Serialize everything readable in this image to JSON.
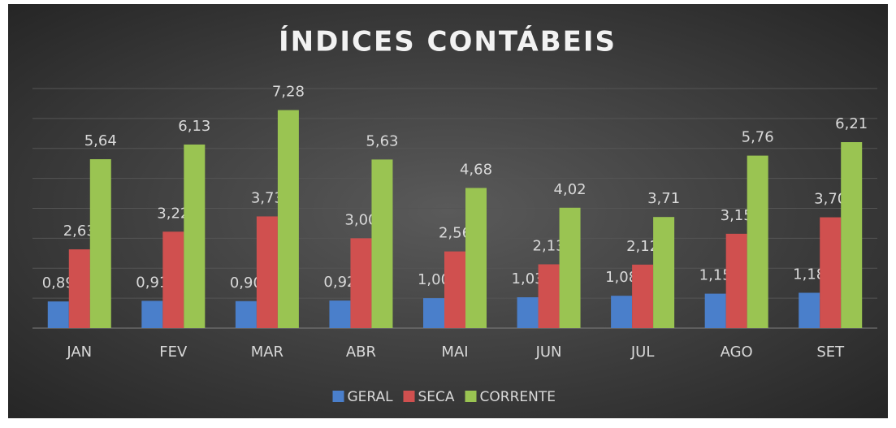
{
  "chart_data": {
    "type": "bar",
    "title": "ÍNDICES CONTÁBEIS",
    "categories": [
      "JAN",
      "FEV",
      "MAR",
      "ABR",
      "MAI",
      "JUN",
      "JUL",
      "AGO",
      "SET"
    ],
    "series": [
      {
        "name": "GERAL",
        "color": "#4a7fcb",
        "values": [
          0.89,
          0.91,
          0.9,
          0.92,
          1.0,
          1.03,
          1.08,
          1.15,
          1.18
        ],
        "value_labels": [
          "0,89",
          "0,91",
          "0,90",
          "0,92",
          "1,00",
          "1,03",
          "1,08",
          "1,15",
          "1,18"
        ]
      },
      {
        "name": "SECA",
        "color": "#d0504f",
        "values": [
          2.63,
          3.22,
          3.73,
          3.0,
          2.56,
          2.13,
          2.12,
          3.15,
          3.7
        ],
        "value_labels": [
          "2,63",
          "3,22",
          "3,73",
          "3,00",
          "2,56",
          "2,13",
          "2,12",
          "3,15",
          "3,70"
        ]
      },
      {
        "name": "CORRENTE",
        "color": "#9ac452",
        "values": [
          5.64,
          6.13,
          7.28,
          5.63,
          4.68,
          4.02,
          3.71,
          5.76,
          6.21
        ],
        "value_labels": [
          "5,64",
          "6,13",
          "7,28",
          "5,63",
          "4,68",
          "4,02",
          "3,71",
          "5,76",
          "6,21"
        ]
      }
    ],
    "ylim": [
      0,
      8
    ],
    "yticks": [
      0,
      1,
      2,
      3,
      4,
      5,
      6,
      7,
      8
    ],
    "grid": true,
    "legend": "bottom"
  }
}
